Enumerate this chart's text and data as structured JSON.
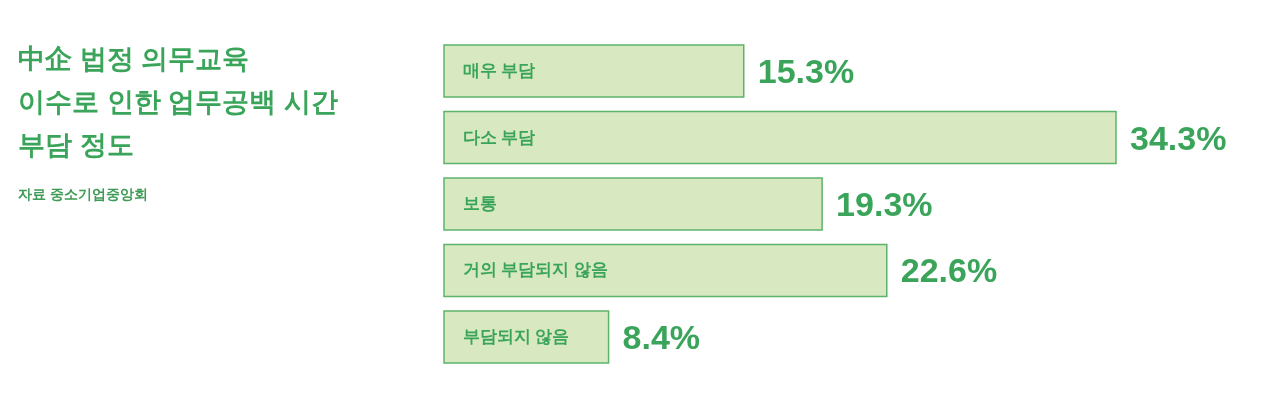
{
  "chart_data": {
    "type": "bar",
    "orientation": "horizontal",
    "title": "中企 법정 의무교육\n이수로 인한 업무공백 시간\n부담 정도",
    "annotations": [
      "자료 중소기업중앙회"
    ],
    "categories": [
      "매우 부담",
      "다소 부담",
      "보통",
      "거의 부담되지 않음",
      "부담되지 않음"
    ],
    "values": [
      15.3,
      34.3,
      19.3,
      22.6,
      8.4
    ],
    "value_labels": [
      "15.3%",
      "34.3%",
      "19.3%",
      "22.6%",
      "8.4%"
    ],
    "color": "#d8e8c0",
    "tick_labels": "y"
  }
}
